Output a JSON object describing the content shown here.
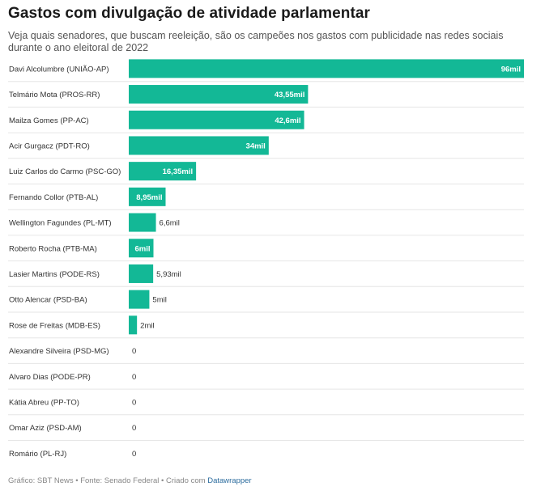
{
  "header": {
    "title": "Gastos com divulgação de atividade parlamentar",
    "subtitle": "Veja quais senadores, que buscam reeleição, são os campeões nos gastos com publicidade nas redes sociais durante o ano eleitoral de 2022"
  },
  "footer": {
    "source": "Gráfico: SBT News • Fonte: Senado Federal • Criado com ",
    "tool": "Datawrapper"
  },
  "colors": {
    "bar": "#13b896",
    "label_inside": "#ffffff",
    "label_outside": "#333333",
    "divider": "#e6e6e6"
  },
  "chart_data": {
    "type": "bar",
    "orientation": "horizontal",
    "categories": [
      "Davi Alcolumbre (UNIÃO-AP)",
      "Telmário Mota (PROS-RR)",
      "Mailza Gomes (PP-AC)",
      "Acir Gurgacz (PDT-RO)",
      "Luiz Carlos do Carmo (PSC-GO)",
      "Fernando Collor (PTB-AL)",
      "Wellington Fagundes (PL-MT)",
      "Roberto Rocha (PTB-MA)",
      "Lasier Martins (PODE-RS)",
      "Otto Alencar (PSD-BA)",
      "Rose de Freitas (MDB-ES)",
      "Alexandre Silveira (PSD-MG)",
      "Alvaro Dias (PODE-PR)",
      "Kátia Abreu (PP-TO)",
      "Omar Aziz (PSD-AM)",
      "Romário (PL-RJ)"
    ],
    "values": [
      96,
      43.55,
      42.6,
      34,
      16.35,
      8.95,
      6.6,
      6,
      5.93,
      5,
      2,
      0,
      0,
      0,
      0,
      0
    ],
    "value_labels": [
      "96mil",
      "43,55mil",
      "42,6mil",
      "34mil",
      "16,35mil",
      "8,95mil",
      "6,6mil",
      "6mil",
      "5,93mil",
      "5mil",
      "2mil",
      "0",
      "0",
      "0",
      "0",
      "0"
    ],
    "label_inside": [
      true,
      true,
      true,
      true,
      true,
      true,
      false,
      true,
      false,
      false,
      false,
      false,
      false,
      false,
      false,
      false
    ],
    "xlim": [
      0,
      96
    ]
  }
}
